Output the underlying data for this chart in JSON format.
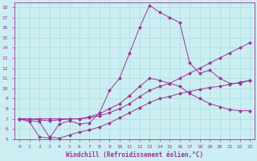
{
  "xlabel": "Windchill (Refroidissement éolien,°C)",
  "background_color": "#cceef2",
  "line_color": "#993399",
  "grid_color": "#aadddd",
  "xlim": [
    -0.5,
    23.5
  ],
  "ylim": [
    5,
    18.5
  ],
  "yticks": [
    5,
    6,
    7,
    8,
    9,
    10,
    11,
    12,
    13,
    14,
    15,
    16,
    17,
    18
  ],
  "xticks": [
    0,
    1,
    2,
    3,
    4,
    5,
    6,
    7,
    8,
    9,
    10,
    11,
    12,
    13,
    14,
    15,
    16,
    17,
    18,
    19,
    20,
    21,
    22,
    23
  ],
  "lines": [
    [
      0,
      1,
      2,
      3,
      4,
      5,
      6,
      7,
      8,
      9,
      10,
      11,
      12,
      13,
      14,
      15,
      16,
      17,
      18,
      19,
      20,
      21,
      22,
      23
    ],
    [
      7.0,
      7.0,
      7.0,
      7.0,
      7.0,
      7.0,
      7.0,
      7.1,
      7.3,
      7.6,
      8.0,
      8.5,
      9.2,
      9.8,
      10.2,
      10.5,
      11.0,
      11.5,
      12.0,
      12.5,
      13.0,
      13.5,
      14.0,
      14.5
    ],
    [
      0,
      1,
      2,
      3,
      4,
      5,
      6,
      7,
      8,
      9,
      10,
      11,
      12,
      13,
      14,
      15,
      16,
      17,
      18,
      19,
      20,
      21,
      22,
      23
    ],
    [
      7.0,
      6.7,
      5.2,
      5.1,
      6.5,
      6.8,
      6.5,
      6.6,
      7.6,
      9.8,
      11.0,
      13.5,
      16.0,
      18.2,
      17.5,
      17.0,
      16.5,
      12.5,
      11.5,
      11.8,
      11.0,
      10.5,
      10.5,
      10.8
    ],
    [
      0,
      1,
      2,
      3,
      4,
      5,
      6,
      7,
      8,
      9,
      10,
      11,
      12,
      13,
      14,
      15,
      16,
      17,
      18,
      19,
      20,
      21,
      22,
      23
    ],
    [
      7.0,
      7.0,
      6.9,
      6.8,
      6.9,
      7.0,
      7.0,
      7.2,
      7.5,
      8.0,
      8.5,
      9.3,
      10.2,
      11.0,
      10.8,
      10.5,
      10.2,
      9.5,
      9.0,
      8.5,
      8.2,
      7.9,
      7.8,
      7.8
    ],
    [
      0,
      2,
      3,
      4,
      5,
      6,
      7,
      8,
      9,
      10,
      11,
      12,
      13,
      14,
      15,
      16,
      17,
      18,
      19,
      20,
      21,
      22,
      23
    ],
    [
      7.0,
      6.7,
      5.2,
      5.1,
      5.4,
      5.7,
      5.9,
      6.2,
      6.6,
      7.1,
      7.6,
      8.1,
      8.6,
      9.0,
      9.2,
      9.5,
      9.7,
      9.9,
      10.1,
      10.2,
      10.4,
      10.6,
      10.8
    ]
  ]
}
